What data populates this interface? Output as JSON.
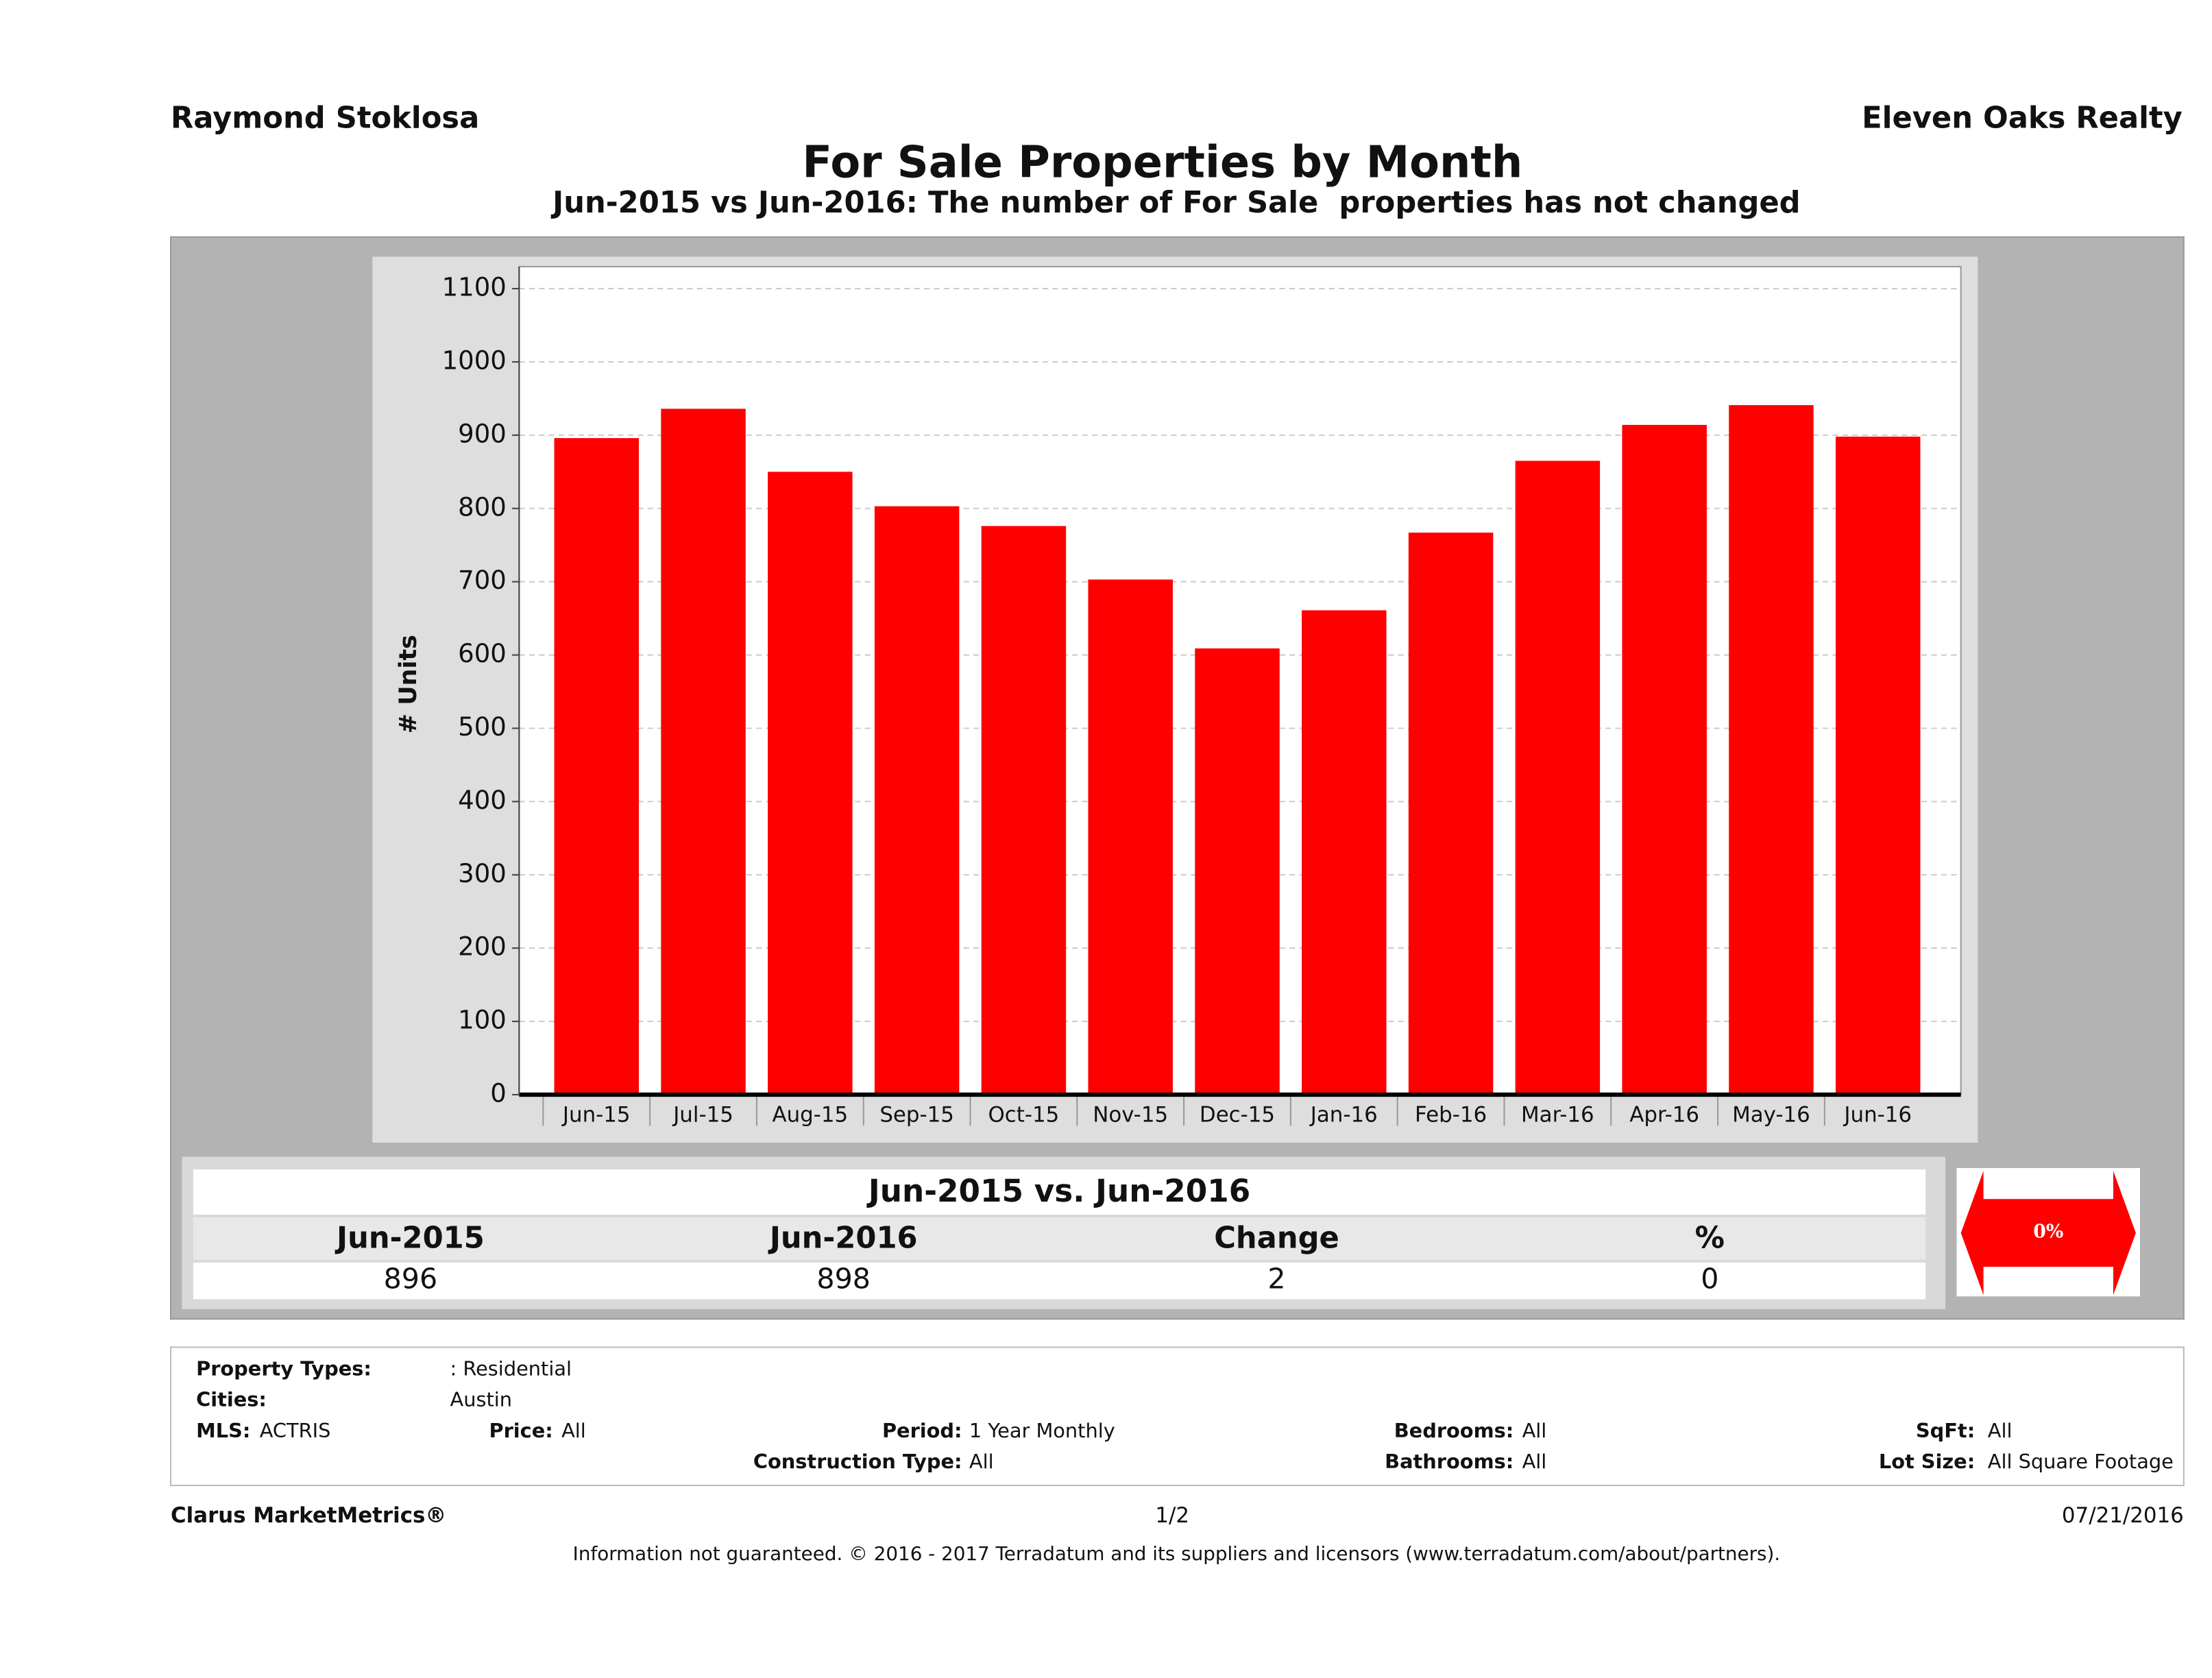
{
  "header": {
    "agent": "Raymond Stoklosa",
    "company": "Eleven Oaks Realty"
  },
  "chart_data": {
    "type": "bar",
    "title": "For Sale Properties by Month",
    "subtitle": "Jun-2015 vs Jun-2016: The number of For Sale  properties has not changed",
    "y_label": "# Units",
    "categories": [
      "Jun-15",
      "Jul-15",
      "Aug-15",
      "Sep-15",
      "Oct-15",
      "Nov-15",
      "Dec-15",
      "Jan-16",
      "Feb-16",
      "Mar-16",
      "Apr-16",
      "May-16",
      "Jun-16"
    ],
    "values": [
      896,
      936,
      850,
      803,
      776,
      703,
      609,
      661,
      767,
      865,
      914,
      941,
      898
    ],
    "color": "#ff0000",
    "ylim": [
      0,
      1130
    ],
    "yticks": [
      0,
      100,
      200,
      300,
      400,
      500,
      600,
      700,
      800,
      900,
      1000,
      1100
    ],
    "grid": true
  },
  "summary": {
    "title": "Jun-2015 vs. Jun-2016",
    "headers": [
      "Jun-2015",
      "Jun-2016",
      "Change",
      "%"
    ],
    "values": [
      896,
      898,
      2,
      0
    ],
    "badge": "0%"
  },
  "filters": [
    {
      "label": "Property Types:",
      "value": ": Residential"
    },
    {
      "label": "Cities:",
      "value": "Austin"
    },
    {
      "label": "MLS:",
      "value": "ACTRIS"
    },
    {
      "label": "Price:",
      "value": "All"
    },
    {
      "label": "Period:",
      "value": "1 Year Monthly"
    },
    {
      "label": "Bedrooms:",
      "value": "All"
    },
    {
      "label": "SqFt:",
      "value": "All"
    },
    {
      "label": "Construction Type:",
      "value": "All"
    },
    {
      "label": "Bathrooms:",
      "value": "All"
    },
    {
      "label": "Lot Size:",
      "value": "All Square Footage"
    }
  ],
  "footer": {
    "brand": "Clarus MarketMetrics®",
    "page": "1/2",
    "date": "07/21/2016",
    "disclaimer": "Information not guaranteed. © 2016 - 2017 Terradatum and its suppliers and licensors (www.terradatum.com/about/partners)."
  }
}
